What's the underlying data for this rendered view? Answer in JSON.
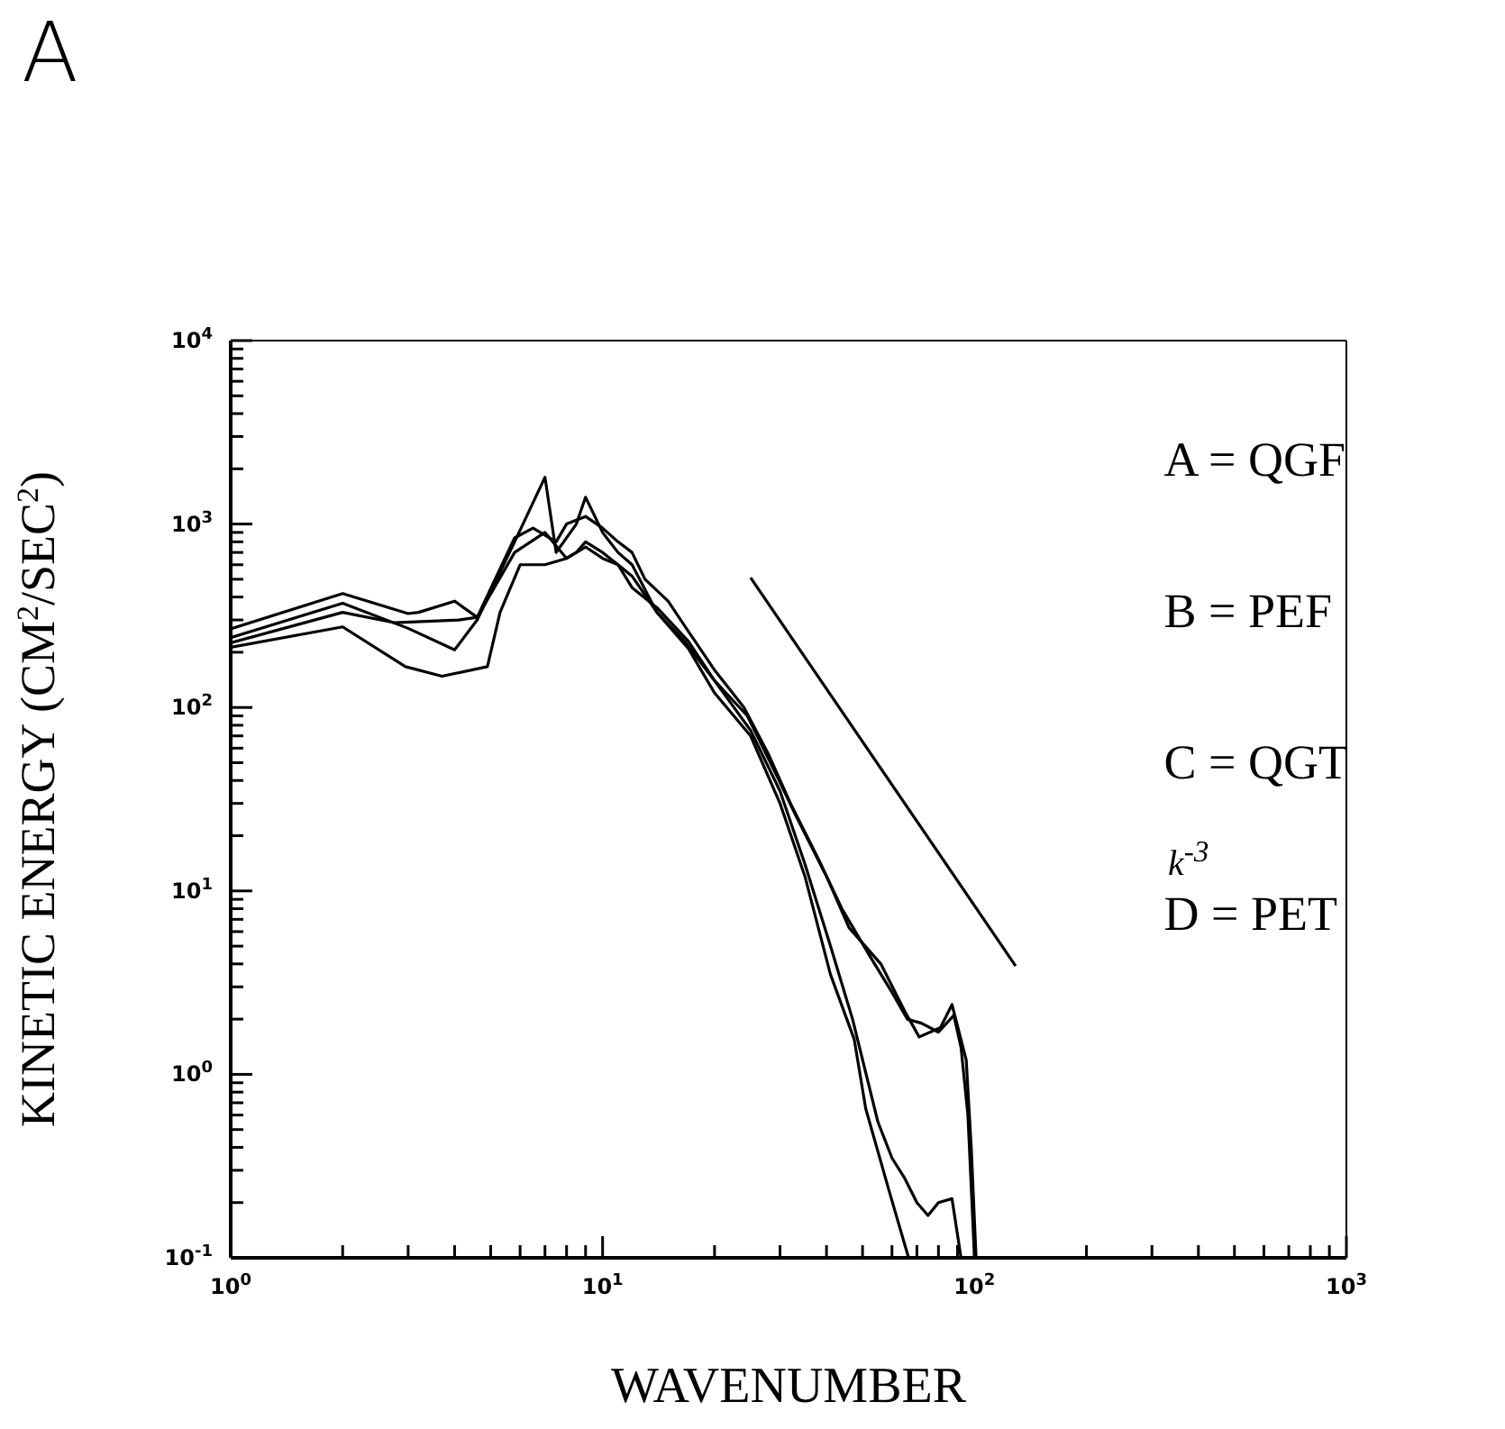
{
  "chart_data": {
    "type": "line",
    "xlabel": "WAVENUMBER",
    "ylabel": "KINETIC ENERGY (CM$^{2}$/SEC$^{2}$)",
    "annotations": [
      "A",
      "k$^{-3}$"
    ],
    "log": "xy",
    "xlim": [
      1,
      1000
    ],
    "ylim": [
      0.1,
      10000
    ],
    "xticks": [
      {
        "value": 1,
        "label": "10$^{0}$"
      },
      {
        "value": 2,
        "label": null
      },
      {
        "value": 3,
        "label": null
      },
      {
        "value": 4,
        "label": null
      },
      {
        "value": 5,
        "label": null
      },
      {
        "value": 6,
        "label": null
      },
      {
        "value": 7,
        "label": null
      },
      {
        "value": 8,
        "label": null
      },
      {
        "value": 9,
        "label": null
      },
      {
        "value": 10,
        "label": "10$^{1}$"
      },
      {
        "value": 20,
        "label": null
      },
      {
        "value": 30,
        "label": null
      },
      {
        "value": 40,
        "label": null
      },
      {
        "value": 50,
        "label": null
      },
      {
        "value": 60,
        "label": null
      },
      {
        "value": 70,
        "label": null
      },
      {
        "value": 80,
        "label": null
      },
      {
        "value": 90,
        "label": null
      },
      {
        "value": 100,
        "label": "10$^{2}$"
      },
      {
        "value": 200,
        "label": null
      },
      {
        "value": 300,
        "label": null
      },
      {
        "value": 400,
        "label": null
      },
      {
        "value": 500,
        "label": null
      },
      {
        "value": 600,
        "label": null
      },
      {
        "value": 700,
        "label": null
      },
      {
        "value": 800,
        "label": null
      },
      {
        "value": 900,
        "label": null
      },
      {
        "value": 1000,
        "label": "10$^{3}$"
      }
    ],
    "yticks": [
      {
        "value": 0.1,
        "label": "10$^{-1}$"
      },
      {
        "value": 0.2,
        "label": null
      },
      {
        "value": 0.3,
        "label": null
      },
      {
        "value": 0.4,
        "label": null
      },
      {
        "value": 0.5,
        "label": null
      },
      {
        "value": 0.6,
        "label": null
      },
      {
        "value": 0.7,
        "label": null
      },
      {
        "value": 0.8,
        "label": null
      },
      {
        "value": 0.9,
        "label": null
      },
      {
        "value": 1,
        "label": "10$^{0}$"
      },
      {
        "value": 2,
        "label": null
      },
      {
        "value": 3,
        "label": null
      },
      {
        "value": 4,
        "label": null
      },
      {
        "value": 5,
        "label": null
      },
      {
        "value": 6,
        "label": null
      },
      {
        "value": 7,
        "label": null
      },
      {
        "value": 8,
        "label": null
      },
      {
        "value": 9,
        "label": null
      },
      {
        "value": 10,
        "label": "10$^{1}$"
      },
      {
        "value": 20,
        "label": null
      },
      {
        "value": 30,
        "label": null
      },
      {
        "value": 40,
        "label": null
      },
      {
        "value": 50,
        "label": null
      },
      {
        "value": 60,
        "label": null
      },
      {
        "value": 70,
        "label": null
      },
      {
        "value": 80,
        "label": null
      },
      {
        "value": 90,
        "label": null
      },
      {
        "value": 100,
        "label": "10$^{2}$"
      },
      {
        "value": 200,
        "label": null
      },
      {
        "value": 300,
        "label": null
      },
      {
        "value": 400,
        "label": null
      },
      {
        "value": 500,
        "label": null
      },
      {
        "value": 600,
        "label": null
      },
      {
        "value": 700,
        "label": null
      },
      {
        "value": 800,
        "label": null
      },
      {
        "value": 900,
        "label": null
      },
      {
        "value": 1000,
        "label": "10$^{3}$"
      },
      {
        "value": 2000,
        "label": null
      },
      {
        "value": 3000,
        "label": null
      },
      {
        "value": 4000,
        "label": null
      },
      {
        "value": 5000,
        "label": null
      },
      {
        "value": 6000,
        "label": null
      },
      {
        "value": 7000,
        "label": null
      },
      {
        "value": 8000,
        "label": null
      },
      {
        "value": 9000,
        "label": null
      },
      {
        "value": 10000,
        "label": "10$^{4}$"
      }
    ],
    "legend": "top right",
    "line_style": "solid",
    "series": [
      {
        "name": "A = QGF",
        "color": "#000000",
        "x": [
          1,
          2,
          3,
          4,
          4.6,
          5.8,
          7,
          7.5,
          8.5,
          9,
          10,
          11,
          12,
          14,
          16.6,
          20,
          24.5,
          29,
          33,
          40,
          46,
          56,
          65,
          71,
          81,
          87,
          95,
          98,
          101
        ],
        "values": [
          240,
          370,
          270,
          206,
          300,
          800,
          1800,
          700,
          1000,
          1400,
          900,
          700,
          600,
          330,
          230,
          140,
          90,
          45,
          26,
          12,
          6.3,
          4,
          2.2,
          1.6,
          1.8,
          2.4,
          1.2,
          0.4,
          0.1
        ]
      },
      {
        "name": "B = PEF",
        "color": "#000000",
        "x": [
          1,
          2,
          2.75,
          4.1,
          4.6,
          5.8,
          7,
          8,
          8.5,
          9,
          10,
          11,
          12,
          14,
          17,
          20,
          25,
          30,
          35,
          41,
          47,
          55,
          60,
          65,
          70,
          75,
          80,
          87,
          92
        ],
        "values": [
          225,
          330,
          290,
          300,
          310,
          700,
          900,
          650,
          700,
          800,
          700,
          600,
          450,
          350,
          230,
          140,
          75,
          35,
          14,
          5,
          2,
          0.55,
          0.35,
          0.27,
          0.2,
          0.17,
          0.2,
          0.21,
          0.1
        ]
      },
      {
        "name": "C = QGT",
        "color": "#000000",
        "x": [
          1,
          2,
          3,
          3.2,
          4,
          4.6,
          5.8,
          6.5,
          7.5,
          8,
          9,
          10,
          11,
          12,
          13,
          15,
          17,
          20,
          24,
          28,
          32,
          38,
          44,
          52,
          60,
          66,
          72,
          80,
          88,
          92,
          96,
          100
        ],
        "values": [
          268,
          418,
          325,
          330,
          380,
          310,
          840,
          950,
          800,
          1000,
          1100,
          950,
          800,
          700,
          500,
          380,
          260,
          160,
          100,
          55,
          30,
          15,
          8,
          4.5,
          2.8,
          2.0,
          1.9,
          1.7,
          2.1,
          1.4,
          0.6,
          0.1
        ]
      },
      {
        "name": "D = PET",
        "color": "#000000",
        "x": [
          1,
          2,
          2.95,
          3.7,
          4.9,
          5.3,
          6,
          7,
          8,
          9,
          10,
          11,
          12,
          14,
          17,
          20,
          25,
          30,
          35,
          41,
          47.5,
          51,
          59,
          66.5
        ],
        "values": [
          213,
          275,
          167,
          148,
          167,
          330,
          600,
          600,
          650,
          750,
          650,
          600,
          520,
          330,
          210,
          120,
          70,
          30,
          12,
          3.5,
          1.55,
          0.65,
          0.23,
          0.1
        ]
      },
      {
        "type": "line",
        "color": "#000000",
        "x": [
          25,
          129
        ],
        "values": [
          510,
          3.9
        ]
      }
    ]
  }
}
